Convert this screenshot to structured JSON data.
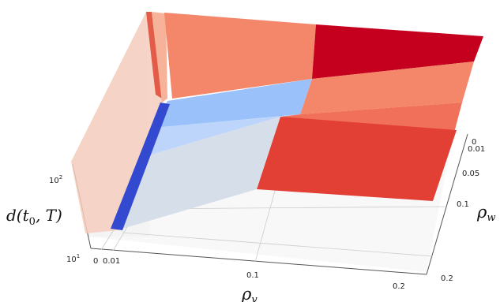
{
  "chart_data": {
    "type": "surface3d",
    "xlabel": "ρ_v",
    "ylabel": "ρ_w",
    "zlabel": "d(t_0, T)",
    "x_ticks": [
      "0",
      "0.01",
      "0.1",
      "0.2"
    ],
    "y_ticks": [
      "0",
      "0.01",
      "0.05",
      "0.1",
      "0.2"
    ],
    "z_ticks": [
      "10^1",
      "10^2"
    ],
    "z_scale": "log",
    "grid": true,
    "colormap": "coolwarm",
    "colors": {
      "dark_red": "#c4001e",
      "red": "#e23f35",
      "salmon": "#f4866a",
      "light_salmon": "#f7b39a",
      "pale_peach": "#f4cdbd",
      "light_blue": "#9bc1fb",
      "pale_blue": "#bdd5fb",
      "grey_blue": "#d6dee9",
      "dark_blue": "#3249d0"
    }
  }
}
